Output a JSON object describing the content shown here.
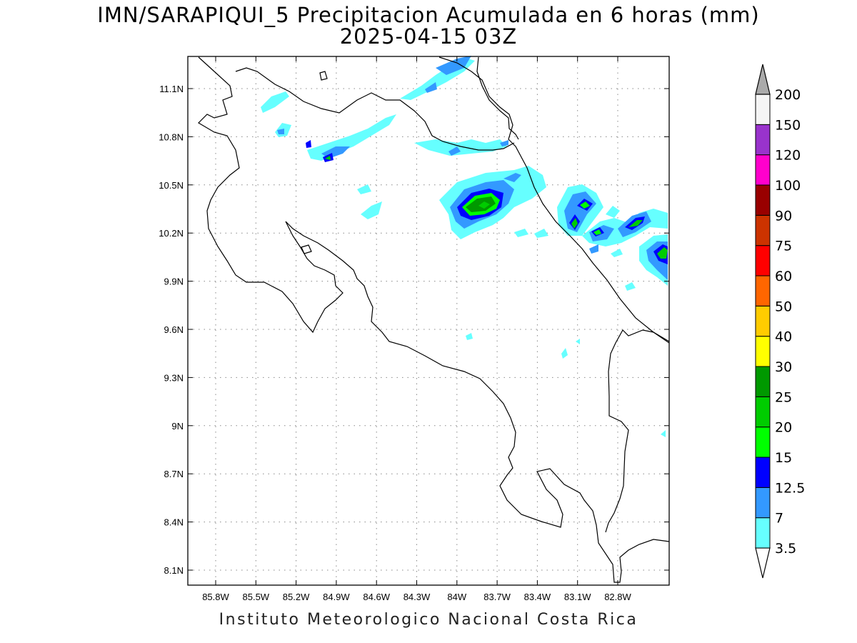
{
  "title": {
    "line1": "IMN/SARAPIQUI_5 Precipitacion Acumulada en 6 horas (mm)",
    "line2": "2025-04-15 03Z"
  },
  "credit": "Instituto Meteorologico Nacional Costa Rica",
  "axes": {
    "lon_ticks": [
      "85.8W",
      "85.5W",
      "85.2W",
      "84.9W",
      "84.6W",
      "84.3W",
      "84W",
      "83.7W",
      "83.4W",
      "83.1W",
      "82.8W"
    ],
    "lat_ticks": [
      "11.1N",
      "10.8N",
      "10.5N",
      "10.2N",
      "9.9N",
      "9.6N",
      "9.3N",
      "9N",
      "8.7N",
      "8.4N",
      "8.1N"
    ],
    "grid": "dotted"
  },
  "colorbar": {
    "labels": [
      "3.5",
      "7",
      "12.5",
      "15",
      "20",
      "25",
      "30",
      "40",
      "50",
      "60",
      "75",
      "90",
      "100",
      "120",
      "150",
      "200"
    ],
    "colors": [
      "#66ffff",
      "#3399ff",
      "#0000ff",
      "#00ff00",
      "#00cc00",
      "#009900",
      "#ffff00",
      "#ffcc00",
      "#ff6600",
      "#ff0000",
      "#cc3300",
      "#990000",
      "#ff00cc",
      "#9933cc",
      "#f5f5f5",
      "#aaaaaa"
    ]
  }
}
